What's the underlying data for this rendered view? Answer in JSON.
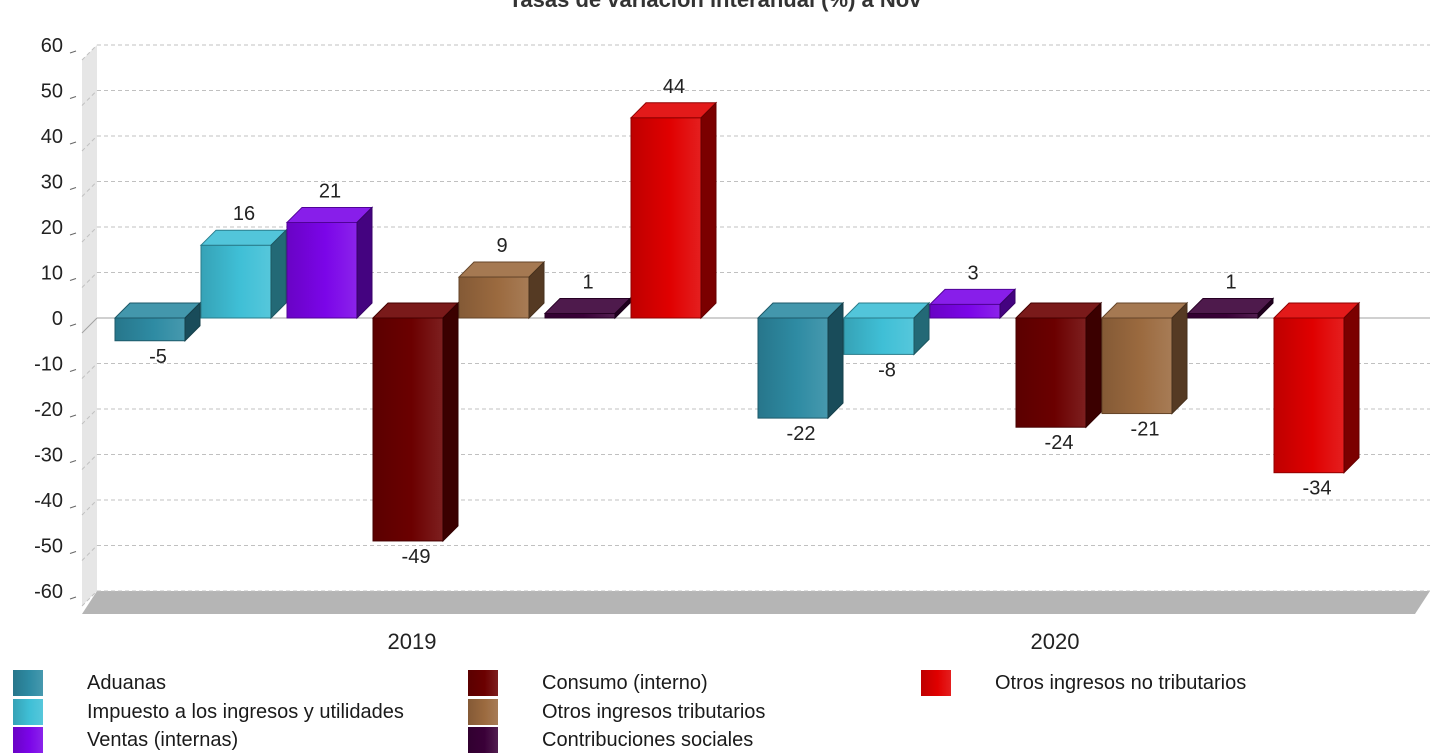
{
  "chart_data": {
    "type": "bar",
    "title": "Tasas de variación interanual (%) a Nov",
    "categories": [
      "2019",
      "2020"
    ],
    "ylim": [
      -60,
      60
    ],
    "yticks": [
      60,
      50,
      40,
      30,
      20,
      10,
      0,
      -10,
      -20,
      -30,
      -40,
      -50,
      -60
    ],
    "grid": true,
    "legend_position": "bottom",
    "series": [
      {
        "name": "Aduanas",
        "values": [
          -5,
          -22
        ],
        "color": "#2e8ba3"
      },
      {
        "name": "Impuesto a los ingresos y utilidades",
        "values": [
          16,
          -8
        ],
        "color": "#3fbfd6"
      },
      {
        "name": "Ventas (internas)",
        "values": [
          21,
          3
        ],
        "color": "#7b05e8"
      },
      {
        "name": "Consumo (interno)",
        "values": [
          -49,
          -24
        ],
        "color": "#6b0000"
      },
      {
        "name": "Otros ingresos tributarios",
        "values": [
          9,
          -21
        ],
        "color": "#9b6a3f"
      },
      {
        "name": "Contribuciones sociales",
        "values": [
          1,
          1
        ],
        "color": "#3a0038"
      },
      {
        "name": "Otros ingresos no tributarios",
        "values": [
          44,
          -34
        ],
        "color": "#e00000"
      }
    ]
  }
}
